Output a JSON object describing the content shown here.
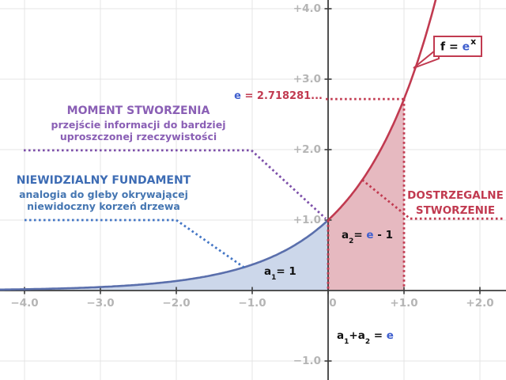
{
  "colors": {
    "purple_text": "#8a5fb5",
    "purple_line": "#7d50aa",
    "blue_text": "#3d6cb4",
    "blue_line": "#4577c6",
    "crimson": "#c13a50",
    "formula_blue": "#3f5fce",
    "curve_blue": "#5a6fac",
    "fill_blue": "#ccd7ea",
    "fill_pink": "#e6b9c0",
    "axis": "#3c3c3c",
    "grid": "#e4e4e4",
    "tick_label": "#b5b5b5"
  },
  "chart_data": {
    "type": "area",
    "function": "f = e^x",
    "e_value": "2.718281...",
    "x_range": [
      -4.33,
      2.34
    ],
    "y_range": [
      -1.27,
      4.12
    ],
    "grid": true,
    "x_ticks": [
      {
        "value": -4,
        "label": "−4.0"
      },
      {
        "value": -3,
        "label": "−3.0"
      },
      {
        "value": -2,
        "label": "−2.0"
      },
      {
        "value": -1,
        "label": "−1.0"
      },
      {
        "value": 0,
        "label": "0"
      },
      {
        "value": 1,
        "label": "+1.0"
      },
      {
        "value": 2,
        "label": "+2.0"
      }
    ],
    "y_ticks": [
      {
        "value": -1,
        "label": "−1.0"
      },
      {
        "value": 1,
        "label": "+1.0"
      },
      {
        "value": 2,
        "label": "+2.0"
      },
      {
        "value": 3,
        "label": "+3.0"
      },
      {
        "value": 4,
        "label": "+4.0"
      }
    ],
    "curve": {
      "base": "e",
      "segments": [
        {
          "name": "curve-negative-x",
          "x_from": -4.33,
          "x_to": 0,
          "color": "#5a6fac"
        },
        {
          "name": "curve-positive-x",
          "x_from": 0,
          "x_to": 1.44,
          "color": "#c13a50"
        }
      ]
    },
    "areas": [
      {
        "name": "area-a1",
        "x_from": -4.33,
        "x_to": 0,
        "value": "1",
        "fill": "#ccd7ea"
      },
      {
        "name": "area-a2",
        "x_from": 0,
        "x_to": 1,
        "value": "e - 1",
        "fill": "#e6b9c0"
      }
    ],
    "guides": [
      {
        "name": "moment-pointer",
        "color": "#7d50aa",
        "points": [
          [
            -4.01,
            1.99
          ],
          [
            -1.01,
            1.99
          ],
          [
            -0.03,
            1.02
          ]
        ]
      },
      {
        "name": "fundament-pointer",
        "color": "#4577c6",
        "points": [
          [
            -4.0,
            1.0
          ],
          [
            -2.0,
            1.0
          ],
          [
            -1.11,
            0.33
          ]
        ]
      },
      {
        "name": "e-value-guide",
        "color": "#c13a50",
        "points": [
          [
            -0.03,
            2.718
          ],
          [
            1.0,
            2.718
          ]
        ]
      },
      {
        "name": "a2-left-boundary",
        "color": "#c13a50",
        "points": [
          [
            0,
            1.0
          ],
          [
            0,
            0.02
          ]
        ]
      },
      {
        "name": "a2-right-boundary",
        "color": "#c13a50",
        "points": [
          [
            1.0,
            2.718
          ],
          [
            1.0,
            0.02
          ]
        ]
      },
      {
        "name": "dostrzegalne-pointer",
        "color": "#c13a50",
        "points": [
          [
            0.45,
            1.57
          ],
          [
            1.08,
            1.02
          ],
          [
            2.33,
            1.02
          ]
        ]
      }
    ]
  },
  "annotations": {
    "moment": {
      "title": "MOMENT STWORZENIA",
      "line1": "przejście informacji do bardziej",
      "line2": "uproszczonej rzeczywistości"
    },
    "fundament": {
      "title": "NIEWIDZIALNY FUNDAMENT",
      "line1": "analogia do gleby okrywającej",
      "line2": "niewidoczny korzeń drzewa"
    },
    "dostrzegalne": {
      "line1": "DOSTRZEGALNE",
      "line2": "STWORZENIE"
    }
  },
  "labels": {
    "e_line": {
      "lhs": "e",
      "eq": " = ",
      "value": "2.718281..."
    },
    "fx_box": {
      "f": "f",
      "eq": " = ",
      "base": "e",
      "exp": "x"
    },
    "a1": {
      "base": "a",
      "sub": "1",
      "rest": "= 1"
    },
    "a2": {
      "base": "a",
      "sub": "2",
      "eq": "= ",
      "e": "e",
      "rest": " - 1"
    },
    "sum": {
      "a": "a",
      "sub1": "1",
      "plus": "+a",
      "sub2": "2",
      "eq": " = ",
      "e": "e"
    }
  }
}
